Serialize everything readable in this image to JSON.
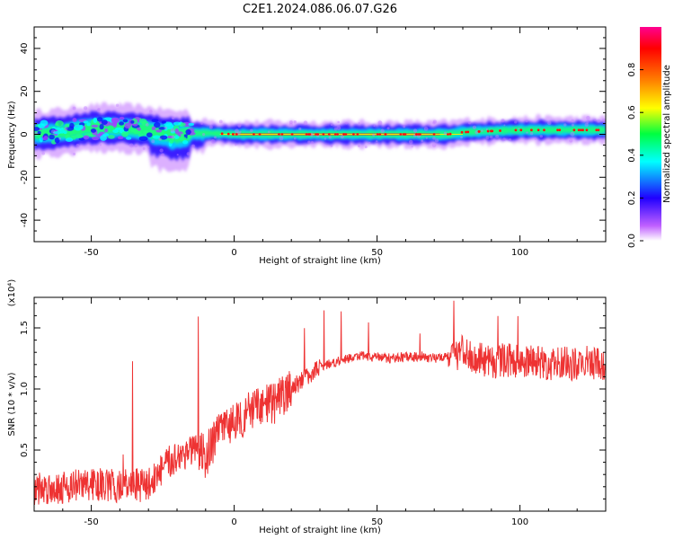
{
  "title": "C2E1.2024.086.06.07.G26",
  "chart_data": [
    {
      "type": "heatmap",
      "xlabel": "Height of straight line (km)",
      "ylabel": "Frequency (Hz)",
      "xlim": [
        -70,
        130
      ],
      "ylim": [
        -50,
        50
      ],
      "xticks": [
        -50,
        0,
        50,
        100
      ],
      "yticks": [
        -40,
        -20,
        0,
        20,
        40
      ],
      "grid": false,
      "colorbar": {
        "label": "Normalized spectral amplitude",
        "range": [
          0,
          1
        ],
        "ticks": [
          "0.0",
          "0.2",
          "0.4",
          "0.6",
          "0.8"
        ],
        "colors": [
          "#ffffff",
          "#c060ff",
          "#2000ff",
          "#00ffff",
          "#00ff40",
          "#ffff00",
          "#ff8000",
          "#ff0000",
          "#ff0090"
        ]
      },
      "description_ridge": [
        {
          "x": -70,
          "f": 0
        },
        {
          "x": -60,
          "f": 1
        },
        {
          "x": -50,
          "f": 3
        },
        {
          "x": -40,
          "f": 3
        },
        {
          "x": -30,
          "f": 2
        },
        {
          "x": -20,
          "f": 0
        },
        {
          "x": -15,
          "f": 1
        },
        {
          "x": 0,
          "f": 0
        },
        {
          "x": 50,
          "f": 0
        },
        {
          "x": 75,
          "f": 0
        },
        {
          "x": 80,
          "f": 1
        },
        {
          "x": 100,
          "f": 2
        },
        {
          "x": 130,
          "f": 2
        }
      ]
    },
    {
      "type": "line",
      "xlabel": "Height of straight line (km)",
      "ylabel": "SNR (10 * v/v)",
      "yscale_note": "(x10⁴)",
      "xlim": [
        -70,
        130
      ],
      "ylim": [
        0,
        1.75
      ],
      "xticks": [
        -50,
        0,
        50,
        100
      ],
      "yticks": [
        0.5,
        1.0,
        1.5
      ],
      "yticklabels": [
        "0.5",
        "1.0",
        "1.5"
      ],
      "grid": false,
      "series": [
        {
          "color": "#ee3333",
          "x": [
            -70,
            -60,
            -50,
            -40,
            -30,
            -25,
            -20,
            -15,
            -10,
            -5,
            0,
            5,
            10,
            15,
            20,
            25,
            30,
            35,
            40,
            45,
            50,
            55,
            60,
            65,
            70,
            75,
            80,
            85,
            90,
            95,
            100,
            105,
            110,
            115,
            120,
            125,
            130
          ],
          "y": [
            0.18,
            0.2,
            0.22,
            0.2,
            0.22,
            0.35,
            0.45,
            0.5,
            0.45,
            0.65,
            0.75,
            0.8,
            0.85,
            0.9,
            1.0,
            1.1,
            1.18,
            1.22,
            1.25,
            1.27,
            1.26,
            1.25,
            1.26,
            1.27,
            1.25,
            1.28,
            1.3,
            1.25,
            1.22,
            1.24,
            1.23,
            1.22,
            1.2,
            1.21,
            1.2,
            1.22,
            1.2
          ]
        }
      ]
    }
  ]
}
